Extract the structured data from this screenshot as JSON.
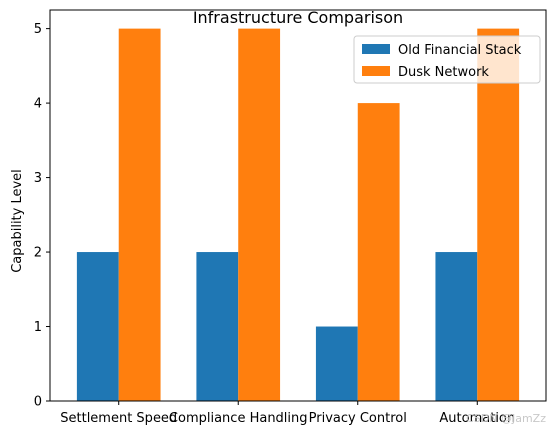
{
  "chart_data": {
    "type": "bar",
    "title": "Infrastructure Comparison",
    "xlabel": "",
    "ylabel": "Capability Level",
    "categories": [
      "Settlement Speed",
      "Compliance Handling",
      "Privacy Control",
      "Automation"
    ],
    "series": [
      {
        "name": "Old Financial Stack",
        "values": [
          2,
          2,
          1,
          2
        ],
        "color": "#1f77b4"
      },
      {
        "name": "Dusk Network",
        "values": [
          5,
          5,
          4,
          5
        ],
        "color": "#ff7f0e"
      }
    ],
    "ylim": [
      0,
      5.25
    ],
    "yticks": [
      "0",
      "1",
      "2",
      "3",
      "4",
      "5"
    ],
    "grid": false,
    "legend_position": "top-right"
  },
  "watermark": "CSDN @JamZz"
}
